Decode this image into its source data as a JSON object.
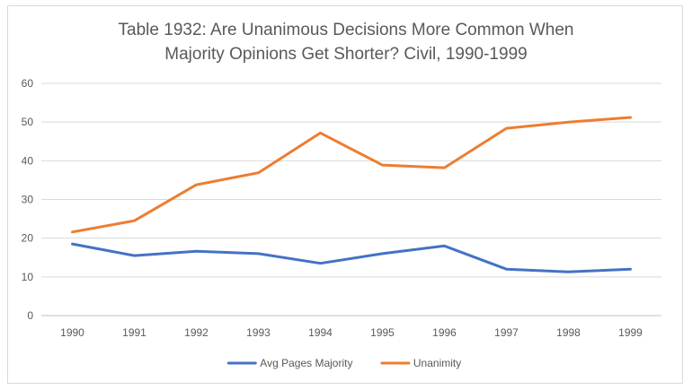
{
  "chart_data": {
    "type": "line",
    "title_lines": [
      "Table 1932: Are Unanimous Decisions More Common When",
      "Majority Opinions Get Shorter?  Civil, 1990-1999"
    ],
    "categories": [
      "1990",
      "1991",
      "1992",
      "1993",
      "1994",
      "1995",
      "1996",
      "1997",
      "1998",
      "1999"
    ],
    "series": [
      {
        "name": "Avg Pages Majority",
        "color": "#4472c4",
        "values": [
          18.5,
          15.5,
          16.6,
          16.0,
          13.5,
          16.0,
          18.0,
          12.0,
          11.3,
          12.0
        ]
      },
      {
        "name": "Unanimity",
        "color": "#ed7d31",
        "values": [
          21.6,
          24.5,
          33.8,
          36.9,
          47.2,
          38.9,
          38.2,
          48.4,
          50.0,
          51.2
        ]
      }
    ],
    "yticks": [
      "0",
      "10",
      "20",
      "30",
      "40",
      "50",
      "60"
    ],
    "ylim": [
      0,
      60
    ],
    "grid": true,
    "legend_position": "bottom"
  }
}
